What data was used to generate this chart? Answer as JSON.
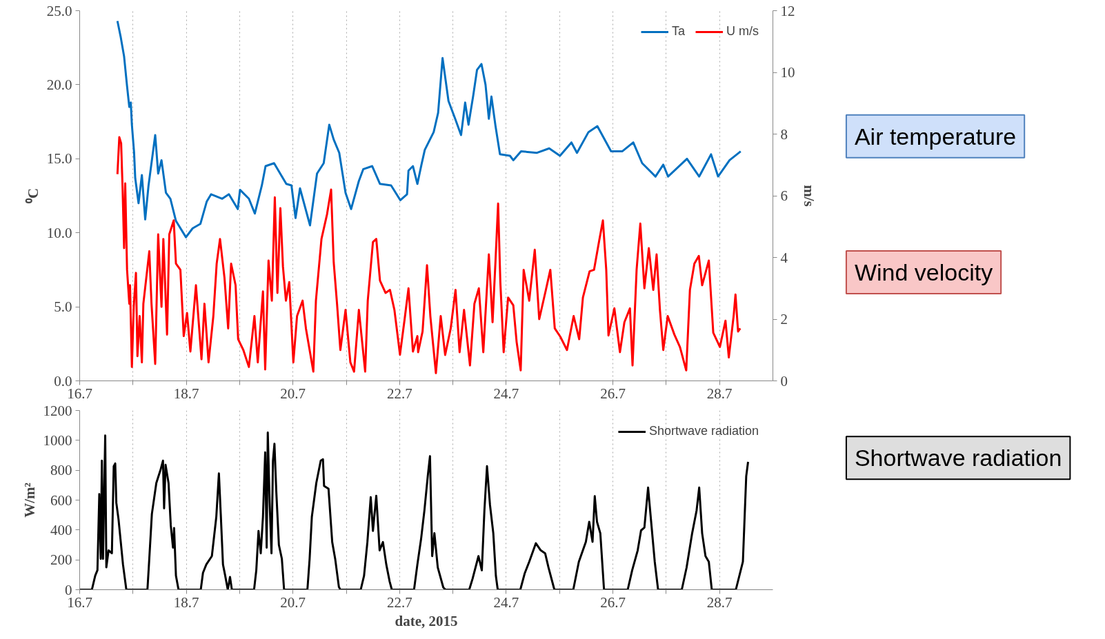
{
  "chart_data": [
    {
      "type": "line",
      "ylabel": "⁰C",
      "y2label": "m/s",
      "xlim": [
        "2015-07-16",
        "2015-07-29"
      ],
      "xticks": [
        {
          "value": "2015-07-16",
          "label": "16.7"
        },
        {
          "value": "2015-07-17",
          "label": null
        },
        {
          "value": "2015-07-18",
          "label": "18.7"
        },
        {
          "value": "2015-07-19",
          "label": null
        },
        {
          "value": "2015-07-20",
          "label": "20.7"
        },
        {
          "value": "2015-07-21",
          "label": null
        },
        {
          "value": "2015-07-22",
          "label": "22.7"
        },
        {
          "value": "2015-07-23",
          "label": null
        },
        {
          "value": "2015-07-24",
          "label": "24.7"
        },
        {
          "value": "2015-07-25",
          "label": null
        },
        {
          "value": "2015-07-26",
          "label": "26.7"
        },
        {
          "value": "2015-07-27",
          "label": null
        },
        {
          "value": "2015-07-28",
          "label": "28.7"
        }
      ],
      "ylim": [
        0,
        25
      ],
      "yticks": [
        {
          "value": 0,
          "label": "0.0"
        },
        {
          "value": 5,
          "label": "5.0"
        },
        {
          "value": 10,
          "label": "10.0"
        },
        {
          "value": 15,
          "label": "15.0"
        },
        {
          "value": 20,
          "label": "20.0"
        },
        {
          "value": 25,
          "label": "25.0"
        }
      ],
      "y2lim": [
        0,
        12
      ],
      "y2ticks": [
        0,
        2,
        4,
        6,
        8,
        10,
        12
      ],
      "grid": "x",
      "legend": "top right",
      "annotations": [
        "Air temperature",
        "Wind velocity"
      ],
      "series": [
        {
          "name": "Ta",
          "color": "#0070c0",
          "x": [
            "2015-07-16T17:00",
            "2015-07-16T18:30",
            "2015-07-16T20:00",
            "2015-07-16T21:20",
            "2015-07-16T22:20",
            "2015-07-16T23:00",
            "2015-07-16T23:30",
            "2015-07-17T00:30",
            "2015-07-17T01:00",
            "2015-07-17T02:30",
            "2015-07-17T04:00",
            "2015-07-17T05:30",
            "2015-07-17T07:00",
            "2015-07-17T10:00",
            "2015-07-17T11:20",
            "2015-07-17T12:50",
            "2015-07-17T14:50",
            "2015-07-17T16:50",
            "2015-07-17T19:20",
            "2015-07-17T23:50",
            "2015-07-18T02:50",
            "2015-07-18T06:20",
            "2015-07-18T09:10",
            "2015-07-18T11:10",
            "2015-07-18T16:10",
            "2015-07-18T19:10",
            "2015-07-18T23:10",
            "2015-07-19T00:10",
            "2015-07-19T04:10",
            "2015-07-19T06:50",
            "2015-07-19T10:00",
            "2015-07-19T11:40",
            "2015-07-19T15:30",
            "2015-07-19T21:00",
            "2015-07-19T23:20",
            "2015-07-20T01:10",
            "2015-07-20T03:10",
            "2015-07-20T07:40",
            "2015-07-20T10:50",
            "2015-07-20T13:50",
            "2015-07-20T16:20",
            "2015-07-20T18:20",
            "2015-07-20T20:50",
            "2015-07-20T23:40",
            "2015-07-21T02:10",
            "2015-07-21T05:40",
            "2015-07-21T07:40",
            "2015-07-21T11:40",
            "2015-07-21T15:10",
            "2015-07-21T20:10",
            "2015-07-22T00:20",
            "2015-07-22T03:20",
            "2015-07-22T04:00",
            "2015-07-22T06:00",
            "2015-07-22T08:00",
            "2015-07-22T09:50",
            "2015-07-22T11:20",
            "2015-07-22T15:20",
            "2015-07-22T17:20",
            "2015-07-22T19:20",
            "2015-07-22T22:00",
            "2015-07-23T01:00",
            "2015-07-23T03:40",
            "2015-07-23T05:30",
            "2015-07-23T07:00",
            "2015-07-23T09:10",
            "2015-07-23T10:50",
            "2015-07-23T12:50",
            "2015-07-23T14:40",
            "2015-07-23T16:10",
            "2015-07-23T17:20",
            "2015-07-23T19:10",
            "2015-07-23T21:10",
            "2015-07-24T01:40",
            "2015-07-24T03:10",
            "2015-07-24T06:40",
            "2015-07-24T13:50",
            "2015-07-24T19:20",
            "2015-07-25T00:10",
            "2015-07-25T05:20",
            "2015-07-25T07:50",
            "2015-07-25T13:00",
            "2015-07-25T17:00",
            "2015-07-25T23:10",
            "2015-07-26T04:10",
            "2015-07-26T09:10",
            "2015-07-26T13:10",
            "2015-07-26T19:10",
            "2015-07-26T22:40",
            "2015-07-27T00:50",
            "2015-07-27T09:20",
            "2015-07-27T14:50",
            "2015-07-27T20:10",
            "2015-07-27T23:20",
            "2015-07-28T04:30",
            "2015-07-28T09:30"
          ],
          "values": [
            24.3,
            23.2,
            21.9,
            19.9,
            18.5,
            18.8,
            17.3,
            15.4,
            13.7,
            12.0,
            13.9,
            10.9,
            13.2,
            16.6,
            14.0,
            14.9,
            12.7,
            12.3,
            10.8,
            9.7,
            10.3,
            10.6,
            12.1,
            12.6,
            12.3,
            12.6,
            11.6,
            12.9,
            12.3,
            11.3,
            13.2,
            14.5,
            14.7,
            13.3,
            13.2,
            11.0,
            13.0,
            10.5,
            14.0,
            14.7,
            17.3,
            16.3,
            15.4,
            12.7,
            11.6,
            13.5,
            14.3,
            14.5,
            13.3,
            13.2,
            12.2,
            12.6,
            14.2,
            14.5,
            13.3,
            14.6,
            15.6,
            16.8,
            18.1,
            21.8,
            18.9,
            17.7,
            16.6,
            18.8,
            17.3,
            19.3,
            21.0,
            21.4,
            20.0,
            17.7,
            19.2,
            17.2,
            15.3,
            15.2,
            14.9,
            15.5,
            15.4,
            15.7,
            15.2,
            16.1,
            15.4,
            16.8,
            17.2,
            15.5,
            15.5,
            16.1,
            14.7,
            13.8,
            14.6,
            13.8,
            15.0,
            13.8,
            15.3,
            13.8,
            14.9,
            15.5
          ]
        },
        {
          "name": "U m/s",
          "color": "#ff0000",
          "axis": "y2",
          "x": [
            "2015-07-16T17:00",
            "2015-07-16T17:50",
            "2015-07-16T18:40",
            "2015-07-16T19:20",
            "2015-07-16T20:00",
            "2015-07-16T20:30",
            "2015-07-16T21:20",
            "2015-07-16T22:20",
            "2015-07-16T22:40",
            "2015-07-16T23:30",
            "2015-07-17T00:20",
            "2015-07-17T01:20",
            "2015-07-17T02:00",
            "2015-07-17T03:00",
            "2015-07-17T04:00",
            "2015-07-17T04:40",
            "2015-07-17T06:00",
            "2015-07-17T07:20",
            "2015-07-17T08:20",
            "2015-07-17T10:00",
            "2015-07-17T11:20",
            "2015-07-17T12:50",
            "2015-07-17T13:40",
            "2015-07-17T15:20",
            "2015-07-17T16:20",
            "2015-07-17T18:20",
            "2015-07-17T19:20",
            "2015-07-17T21:20",
            "2015-07-17T22:50",
            "2015-07-18T00:20",
            "2015-07-18T01:50",
            "2015-07-18T04:20",
            "2015-07-18T06:50",
            "2015-07-18T08:10",
            "2015-07-18T10:00",
            "2015-07-18T12:10",
            "2015-07-18T13:40",
            "2015-07-18T15:10",
            "2015-07-18T17:10",
            "2015-07-18T18:50",
            "2015-07-18T20:10",
            "2015-07-18T22:10",
            "2015-07-18T23:20",
            "2015-07-19T01:40",
            "2015-07-19T04:10",
            "2015-07-19T06:40",
            "2015-07-19T08:10",
            "2015-07-19T10:30",
            "2015-07-19T11:30",
            "2015-07-19T13:00",
            "2015-07-19T14:30",
            "2015-07-19T15:50",
            "2015-07-19T17:00",
            "2015-07-19T18:20",
            "2015-07-19T19:30",
            "2015-07-19T20:50",
            "2015-07-19T22:20",
            "2015-07-20T00:10",
            "2015-07-20T01:50",
            "2015-07-20T04:20",
            "2015-07-20T05:50",
            "2015-07-20T09:10",
            "2015-07-20T10:20",
            "2015-07-20T12:50",
            "2015-07-20T15:20",
            "2015-07-20T17:10",
            "2015-07-20T18:20",
            "2015-07-20T19:50",
            "2015-07-20T21:20",
            "2015-07-20T23:40",
            "2015-07-21T01:50",
            "2015-07-21T03:30",
            "2015-07-21T05:40",
            "2015-07-21T08:30",
            "2015-07-21T09:40",
            "2015-07-21T12:00",
            "2015-07-21T13:30",
            "2015-07-21T15:10",
            "2015-07-21T17:40",
            "2015-07-21T19:40",
            "2015-07-21T21:40",
            "2015-07-22T00:10",
            "2015-07-22T02:10",
            "2015-07-22T04:00",
            "2015-07-22T06:00",
            "2015-07-22T08:00",
            "2015-07-22T08:20",
            "2015-07-22T10:20",
            "2015-07-22T12:20",
            "2015-07-22T13:50",
            "2015-07-22T16:20",
            "2015-07-22T18:30",
            "2015-07-22T20:30",
            "2015-07-22T23:00",
            "2015-07-23T01:10",
            "2015-07-23T03:00",
            "2015-07-23T05:00",
            "2015-07-23T07:40",
            "2015-07-23T09:40",
            "2015-07-23T11:40",
            "2015-07-23T13:40",
            "2015-07-23T16:10",
            "2015-07-23T17:50",
            "2015-07-23T19:10",
            "2015-07-23T20:20",
            "2015-07-23T21:20",
            "2015-07-23T22:50",
            "2015-07-24T00:50",
            "2015-07-24T03:10",
            "2015-07-24T04:40",
            "2015-07-24T06:30",
            "2015-07-24T07:50",
            "2015-07-24T10:20",
            "2015-07-24T12:50",
            "2015-07-24T14:50",
            "2015-07-24T17:50",
            "2015-07-24T19:50",
            "2015-07-24T21:50",
            "2015-07-25T00:20",
            "2015-07-25T03:20",
            "2015-07-25T06:20",
            "2015-07-25T08:50",
            "2015-07-25T10:30",
            "2015-07-25T13:30",
            "2015-07-25T15:30",
            "2015-07-25T17:50",
            "2015-07-25T19:30",
            "2015-07-25T21:00",
            "2015-07-25T22:00",
            "2015-07-26T00:40",
            "2015-07-26T03:10",
            "2015-07-26T05:10",
            "2015-07-26T07:40",
            "2015-07-26T08:50",
            "2015-07-26T10:40",
            "2015-07-26T12:20",
            "2015-07-26T14:10",
            "2015-07-26T16:10",
            "2015-07-26T18:10",
            "2015-07-26T19:40",
            "2015-07-26T21:10",
            "2015-07-26T22:40",
            "2015-07-27T00:40",
            "2015-07-27T03:40",
            "2015-07-27T06:10",
            "2015-07-27T09:00",
            "2015-07-27T10:40",
            "2015-07-27T12:40",
            "2015-07-27T14:40",
            "2015-07-27T16:10",
            "2015-07-27T19:10",
            "2015-07-27T21:10",
            "2015-07-28T00:10",
            "2015-07-28T02:40",
            "2015-07-28T04:10",
            "2015-07-28T06:20",
            "2015-07-28T07:10",
            "2015-07-28T08:20",
            "2015-07-28T09:20"
          ],
          "values": [
            6.7,
            7.9,
            7.7,
            6.2,
            4.3,
            6.4,
            3.6,
            2.5,
            3.1,
            0.45,
            2.4,
            3.5,
            0.8,
            2.1,
            0.6,
            2.5,
            3.35,
            4.2,
            2.5,
            0.55,
            4.75,
            2.4,
            4.6,
            1.5,
            4.75,
            5.2,
            3.8,
            3.6,
            1.45,
            2.2,
            0.95,
            3.1,
            0.7,
            2.5,
            0.6,
            2.1,
            3.8,
            4.6,
            3.35,
            1.7,
            3.8,
            3.1,
            1.35,
            1.0,
            0.45,
            2.1,
            0.6,
            2.9,
            0.37,
            3.9,
            2.6,
            5.95,
            2.85,
            5.6,
            3.7,
            2.6,
            3.2,
            0.6,
            2.1,
            2.6,
            1.7,
            0.3,
            2.6,
            4.6,
            5.4,
            6.2,
            3.85,
            2.5,
            1.0,
            2.3,
            0.6,
            0.3,
            2.3,
            0.3,
            2.6,
            4.5,
            4.6,
            3.25,
            2.85,
            2.95,
            2.3,
            0.85,
            1.95,
            3.0,
            0.95,
            1.45,
            0.93,
            1.6,
            3.75,
            2.1,
            0.25,
            2.1,
            0.84,
            1.7,
            2.95,
            0.93,
            2.3,
            0.5,
            2.5,
            3.0,
            0.93,
            4.1,
            1.9,
            3.9,
            5.75,
            3.2,
            0.93,
            2.7,
            2.45,
            1.26,
            0.34,
            3.6,
            2.6,
            4.25,
            2.0,
            2.95,
            3.6,
            1.7,
            1.43,
            1.0,
            2.1,
            1.35,
            2.7,
            3.55,
            3.6,
            4.55,
            5.2,
            3.6,
            1.47,
            2.35,
            0.93,
            1.9,
            2.35,
            0.5,
            3.6,
            5.1,
            3.0,
            4.3,
            2.95,
            4.1,
            2.3,
            1.0,
            2.1,
            1.5,
            1.1,
            0.34,
            2.95,
            3.8,
            4.05,
            3.1,
            3.9,
            1.56,
            1.1,
            1.95,
            0.76,
            2.1,
            2.8,
            1.6,
            1.7
          ]
        }
      ]
    },
    {
      "type": "line",
      "ylabel": "W/m²",
      "xlabel": "date, 2015",
      "xlim": [
        "2015-07-16",
        "2015-07-29"
      ],
      "xticks": [
        {
          "value": "2015-07-16",
          "label": "16.7"
        },
        {
          "value": "2015-07-17",
          "label": null
        },
        {
          "value": "2015-07-18",
          "label": "18.7"
        },
        {
          "value": "2015-07-19",
          "label": null
        },
        {
          "value": "2015-07-20",
          "label": "20.7"
        },
        {
          "value": "2015-07-21",
          "label": null
        },
        {
          "value": "2015-07-22",
          "label": "22.7"
        },
        {
          "value": "2015-07-23",
          "label": null
        },
        {
          "value": "2015-07-24",
          "label": "24.7"
        },
        {
          "value": "2015-07-25",
          "label": null
        },
        {
          "value": "2015-07-26",
          "label": "26.7"
        },
        {
          "value": "2015-07-27",
          "label": null
        },
        {
          "value": "2015-07-28",
          "label": "28.7"
        }
      ],
      "ylim": [
        0,
        1200
      ],
      "yticks": [
        0,
        200,
        400,
        600,
        800,
        1000,
        1200
      ],
      "grid": "x",
      "legend": "top right",
      "annotations": [
        "Shortwave radiation"
      ],
      "series": [
        {
          "name": "Shortwave radiation",
          "color": "#000000",
          "x": [
            "2015-07-16T00:00",
            "2015-07-16T05:30",
            "2015-07-16T07:00",
            "2015-07-16T08:00",
            "2015-07-16T08:50",
            "2015-07-16T09:30",
            "2015-07-16T10:00",
            "2015-07-16T10:30",
            "2015-07-16T11:30",
            "2015-07-16T12:00",
            "2015-07-16T13:00",
            "2015-07-16T14:30",
            "2015-07-16T15:20",
            "2015-07-16T16:00",
            "2015-07-16T16:30",
            "2015-07-16T17:30",
            "2015-07-16T19:30",
            "2015-07-16T21:00",
            "2015-07-17T06:30",
            "2015-07-17T07:20",
            "2015-07-17T08:30",
            "2015-07-17T10:30",
            "2015-07-17T12:30",
            "2015-07-17T13:30",
            "2015-07-17T14:00",
            "2015-07-17T14:40",
            "2015-07-17T16:00",
            "2015-07-17T17:00",
            "2015-07-17T18:00",
            "2015-07-17T18:30",
            "2015-07-17T19:20",
            "2015-07-17T20:30",
            "2015-07-18T06:30",
            "2015-07-18T07:30",
            "2015-07-18T09:00",
            "2015-07-18T11:30",
            "2015-07-18T13:30",
            "2015-07-18T14:40",
            "2015-07-18T15:30",
            "2015-07-18T16:30",
            "2015-07-18T17:30",
            "2015-07-18T18:40",
            "2015-07-18T19:40",
            "2015-07-18T20:30",
            "2015-07-19T06:30",
            "2015-07-19T07:30",
            "2015-07-19T08:30",
            "2015-07-19T09:30",
            "2015-07-19T10:30",
            "2015-07-19T11:30",
            "2015-07-19T12:10",
            "2015-07-19T12:40",
            "2015-07-19T13:30",
            "2015-07-19T14:20",
            "2015-07-19T15:00",
            "2015-07-19T15:40",
            "2015-07-19T16:30",
            "2015-07-19T17:40",
            "2015-07-19T19:00",
            "2015-07-19T20:00",
            "2015-07-20T06:30",
            "2015-07-20T07:30",
            "2015-07-20T08:30",
            "2015-07-20T10:30",
            "2015-07-20T12:30",
            "2015-07-20T13:30",
            "2015-07-20T14:00",
            "2015-07-20T16:00",
            "2015-07-20T17:40",
            "2015-07-20T19:00",
            "2015-07-20T20:40",
            "2015-07-20T21:20",
            "2015-07-21T06:30",
            "2015-07-21T08:00",
            "2015-07-21T09:30",
            "2015-07-21T11:00",
            "2015-07-21T12:00",
            "2015-07-21T13:30",
            "2015-07-21T15:00",
            "2015-07-21T16:30",
            "2015-07-21T18:00",
            "2015-07-21T19:30",
            "2015-07-21T20:30",
            "2015-07-22T06:30",
            "2015-07-22T08:00",
            "2015-07-22T09:40",
            "2015-07-22T11:10",
            "2015-07-22T12:40",
            "2015-07-22T13:40",
            "2015-07-22T14:40",
            "2015-07-22T15:40",
            "2015-07-22T17:10",
            "2015-07-22T19:40",
            "2015-07-22T20:40",
            "2015-07-23T07:20",
            "2015-07-23T08:50",
            "2015-07-23T11:30",
            "2015-07-23T13:00",
            "2015-07-23T14:10",
            "2015-07-23T15:20",
            "2015-07-23T16:40",
            "2015-07-23T18:10",
            "2015-07-23T19:20",
            "2015-07-23T20:10",
            "2015-07-24T06:20",
            "2015-07-24T08:20",
            "2015-07-24T10:20",
            "2015-07-24T13:20",
            "2015-07-24T15:30",
            "2015-07-24T17:30",
            "2015-07-24T19:00",
            "2015-07-24T21:40",
            "2015-07-25T06:10",
            "2015-07-25T08:40",
            "2015-07-25T11:50",
            "2015-07-25T13:20",
            "2015-07-25T14:50",
            "2015-07-25T15:50",
            "2015-07-25T16:50",
            "2015-07-25T18:20",
            "2015-07-25T20:00",
            "2015-07-26T06:40",
            "2015-07-26T08:40",
            "2015-07-26T11:10",
            "2015-07-26T12:40",
            "2015-07-26T14:10",
            "2015-07-26T15:50",
            "2015-07-26T17:20",
            "2015-07-26T18:50",
            "2015-07-26T20:20",
            "2015-07-27T07:00",
            "2015-07-27T09:10",
            "2015-07-27T11:40",
            "2015-07-27T13:40",
            "2015-07-27T14:50",
            "2015-07-27T16:10",
            "2015-07-27T17:40",
            "2015-07-27T19:10",
            "2015-07-27T20:30",
            "2015-07-28T07:20",
            "2015-07-28T10:30",
            "2015-07-28T12:00",
            "2015-07-28T12:50"
          ],
          "values": [
            0,
            0,
            94,
            131,
            640,
            207,
            864,
            207,
            1033,
            150,
            263,
            244,
            826,
            845,
            582,
            470,
            169,
            0,
            0,
            207,
            507,
            714,
            808,
            864,
            545,
            836,
            714,
            432,
            282,
            413,
            94,
            0,
            0,
            113,
            169,
            225,
            488,
            779,
            507,
            169,
            94,
            0,
            85,
            0,
            0,
            131,
            394,
            244,
            488,
            920,
            282,
            1052,
            582,
            244,
            864,
            977,
            657,
            300,
            207,
            0,
            0,
            207,
            488,
            714,
            864,
            873,
            695,
            676,
            319,
            207,
            19,
            0,
            0,
            94,
            319,
            620,
            394,
            629,
            263,
            319,
            169,
            56,
            0,
            0,
            169,
            340,
            531,
            760,
            894,
            225,
            378,
            149,
            15,
            0,
            0,
            73,
            225,
            130,
            531,
            827,
            569,
            378,
            92,
            0,
            0,
            111,
            187,
            311,
            264,
            244,
            149,
            0,
            0,
            187,
            321,
            455,
            321,
            626,
            455,
            378,
            0,
            0,
            130,
            264,
            397,
            416,
            684,
            435,
            187,
            0,
            0,
            149,
            378,
            531,
            684,
            378,
            225,
            187,
            0,
            0,
            187,
            760,
            856
          ]
        }
      ]
    }
  ]
}
